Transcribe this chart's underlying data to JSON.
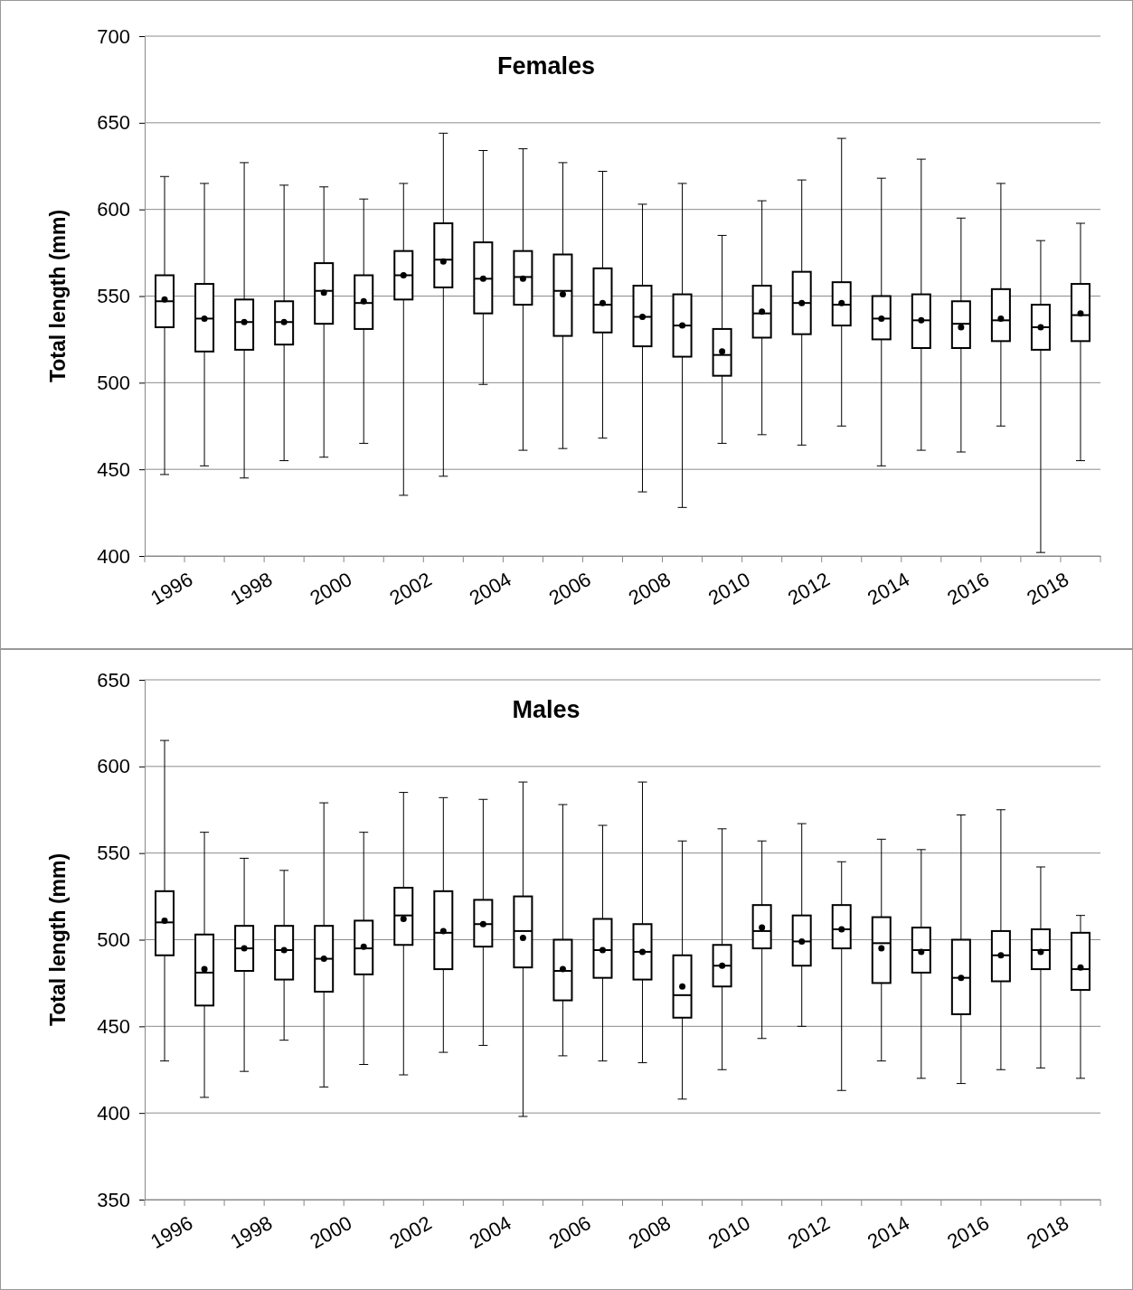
{
  "chart_data": [
    {
      "type": "box",
      "title": "Females",
      "ylabel": "Total length (mm)",
      "categories": [
        "1996",
        null,
        "1998",
        null,
        "2000",
        null,
        "2002",
        null,
        "2004",
        null,
        "2006",
        null,
        "2008",
        null,
        "2010",
        null,
        "2012",
        null,
        "2014",
        null,
        "2016",
        null,
        "2018",
        null
      ],
      "ylim": [
        400,
        700
      ],
      "yticks": [
        400,
        450,
        500,
        550,
        600,
        650,
        700
      ],
      "grid": "y",
      "boxes": [
        {
          "low": 447,
          "q1": 532,
          "median": 547,
          "q3": 562,
          "high": 619,
          "mean": 548
        },
        {
          "low": 452,
          "q1": 518,
          "median": 537,
          "q3": 557,
          "high": 615,
          "mean": 537
        },
        {
          "low": 445,
          "q1": 519,
          "median": 535,
          "q3": 548,
          "high": 627,
          "mean": 535
        },
        {
          "low": 455,
          "q1": 522,
          "median": 535,
          "q3": 547,
          "high": 614,
          "mean": 535
        },
        {
          "low": 457,
          "q1": 534,
          "median": 553,
          "q3": 569,
          "high": 613,
          "mean": 552
        },
        {
          "low": 465,
          "q1": 531,
          "median": 546,
          "q3": 562,
          "high": 606,
          "mean": 547
        },
        {
          "low": 435,
          "q1": 548,
          "median": 562,
          "q3": 576,
          "high": 615,
          "mean": 562
        },
        {
          "low": 446,
          "q1": 555,
          "median": 571,
          "q3": 592,
          "high": 644,
          "mean": 570
        },
        {
          "low": 499,
          "q1": 540,
          "median": 560,
          "q3": 581,
          "high": 634,
          "mean": 560
        },
        {
          "low": 461,
          "q1": 545,
          "median": 561,
          "q3": 576,
          "high": 635,
          "mean": 560
        },
        {
          "low": 462,
          "q1": 527,
          "median": 553,
          "q3": 574,
          "high": 627,
          "mean": 551
        },
        {
          "low": 468,
          "q1": 529,
          "median": 545,
          "q3": 566,
          "high": 622,
          "mean": 546
        },
        {
          "low": 437,
          "q1": 521,
          "median": 538,
          "q3": 556,
          "high": 603,
          "mean": 538
        },
        {
          "low": 428,
          "q1": 515,
          "median": 533,
          "q3": 551,
          "high": 615,
          "mean": 533
        },
        {
          "low": 465,
          "q1": 504,
          "median": 516,
          "q3": 531,
          "high": 585,
          "mean": 518
        },
        {
          "low": 470,
          "q1": 526,
          "median": 540,
          "q3": 556,
          "high": 605,
          "mean": 541
        },
        {
          "low": 464,
          "q1": 528,
          "median": 546,
          "q3": 564,
          "high": 617,
          "mean": 546
        },
        {
          "low": 475,
          "q1": 533,
          "median": 545,
          "q3": 558,
          "high": 641,
          "mean": 546
        },
        {
          "low": 452,
          "q1": 525,
          "median": 537,
          "q3": 550,
          "high": 618,
          "mean": 537
        },
        {
          "low": 461,
          "q1": 520,
          "median": 536,
          "q3": 551,
          "high": 629,
          "mean": 536
        },
        {
          "low": 460,
          "q1": 520,
          "median": 534,
          "q3": 547,
          "high": 595,
          "mean": 532
        },
        {
          "low": 475,
          "q1": 524,
          "median": 536,
          "q3": 554,
          "high": 615,
          "mean": 537
        },
        {
          "low": 402,
          "q1": 519,
          "median": 532,
          "q3": 545,
          "high": 582,
          "mean": 532
        },
        {
          "low": 455,
          "q1": 524,
          "median": 539,
          "q3": 557,
          "high": 592,
          "mean": 540
        }
      ]
    },
    {
      "type": "box",
      "title": "Males",
      "ylabel": "Total length (mm)",
      "categories": [
        "1996",
        null,
        "1998",
        null,
        "2000",
        null,
        "2002",
        null,
        "2004",
        null,
        "2006",
        null,
        "2008",
        null,
        "2010",
        null,
        "2012",
        null,
        "2014",
        null,
        "2016",
        null,
        "2018",
        null
      ],
      "ylim": [
        350,
        650
      ],
      "yticks": [
        350,
        400,
        450,
        500,
        550,
        600,
        650
      ],
      "grid": "y",
      "boxes": [
        {
          "low": 430,
          "q1": 491,
          "median": 510,
          "q3": 528,
          "high": 615,
          "mean": 511
        },
        {
          "low": 409,
          "q1": 462,
          "median": 481,
          "q3": 503,
          "high": 562,
          "mean": 483
        },
        {
          "low": 424,
          "q1": 482,
          "median": 495,
          "q3": 508,
          "high": 547,
          "mean": 495
        },
        {
          "low": 442,
          "q1": 477,
          "median": 494,
          "q3": 508,
          "high": 540,
          "mean": 494
        },
        {
          "low": 415,
          "q1": 470,
          "median": 489,
          "q3": 508,
          "high": 579,
          "mean": 489
        },
        {
          "low": 428,
          "q1": 480,
          "median": 495,
          "q3": 511,
          "high": 562,
          "mean": 496
        },
        {
          "low": 422,
          "q1": 497,
          "median": 514,
          "q3": 530,
          "high": 585,
          "mean": 512
        },
        {
          "low": 435,
          "q1": 483,
          "median": 504,
          "q3": 528,
          "high": 582,
          "mean": 505
        },
        {
          "low": 439,
          "q1": 496,
          "median": 509,
          "q3": 523,
          "high": 581,
          "mean": 509
        },
        {
          "low": 398,
          "q1": 484,
          "median": 505,
          "q3": 525,
          "high": 591,
          "mean": 501
        },
        {
          "low": 433,
          "q1": 465,
          "median": 482,
          "q3": 500,
          "high": 578,
          "mean": 483
        },
        {
          "low": 430,
          "q1": 478,
          "median": 494,
          "q3": 512,
          "high": 566,
          "mean": 494
        },
        {
          "low": 429,
          "q1": 477,
          "median": 493,
          "q3": 509,
          "high": 591,
          "mean": 493
        },
        {
          "low": 408,
          "q1": 455,
          "median": 468,
          "q3": 491,
          "high": 557,
          "mean": 473
        },
        {
          "low": 425,
          "q1": 473,
          "median": 485,
          "q3": 497,
          "high": 564,
          "mean": 485
        },
        {
          "low": 443,
          "q1": 495,
          "median": 505,
          "q3": 520,
          "high": 557,
          "mean": 507
        },
        {
          "low": 450,
          "q1": 485,
          "median": 499,
          "q3": 514,
          "high": 567,
          "mean": 499
        },
        {
          "low": 413,
          "q1": 495,
          "median": 506,
          "q3": 520,
          "high": 545,
          "mean": 506
        },
        {
          "low": 430,
          "q1": 475,
          "median": 498,
          "q3": 513,
          "high": 558,
          "mean": 495
        },
        {
          "low": 420,
          "q1": 481,
          "median": 494,
          "q3": 507,
          "high": 552,
          "mean": 493
        },
        {
          "low": 417,
          "q1": 457,
          "median": 478,
          "q3": 500,
          "high": 572,
          "mean": 478
        },
        {
          "low": 425,
          "q1": 476,
          "median": 491,
          "q3": 505,
          "high": 575,
          "mean": 491
        },
        {
          "low": 426,
          "q1": 483,
          "median": 494,
          "q3": 506,
          "high": 542,
          "mean": 493
        },
        {
          "low": 420,
          "q1": 471,
          "median": 483,
          "q3": 504,
          "high": 514,
          "mean": 484
        }
      ]
    }
  ]
}
